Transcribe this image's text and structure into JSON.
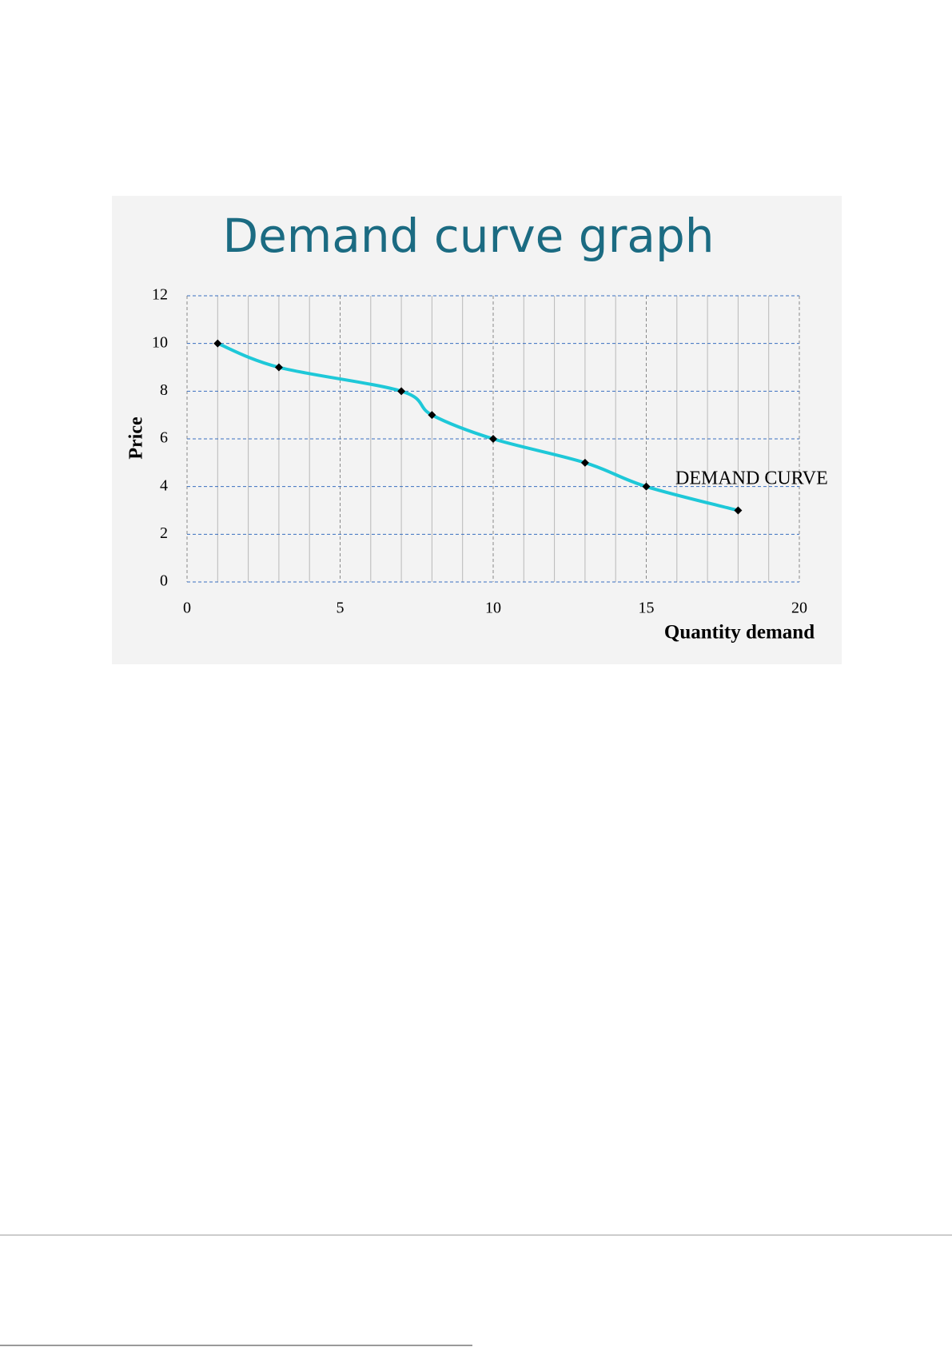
{
  "chart_data": {
    "type": "line",
    "title": "Demand curve graph",
    "x_label": "Quantity demand",
    "y_label": "Price",
    "x": [
      1,
      3,
      7,
      8,
      10,
      13,
      15,
      18
    ],
    "series": [
      {
        "name": "DEMAND CURVE",
        "color": "#1ec8d8",
        "values": [
          10,
          9,
          8,
          7,
          6,
          5,
          4,
          3
        ]
      }
    ],
    "xlim": [
      0,
      20
    ],
    "xticks": [
      0,
      5,
      10,
      15,
      20
    ],
    "x_minor_grid": [
      1,
      2,
      3,
      4,
      6,
      7,
      8,
      9,
      11,
      12,
      13,
      14,
      16,
      17,
      18,
      19
    ],
    "ylim": [
      0,
      12
    ],
    "yticks": [
      0,
      2,
      4,
      6,
      8,
      10,
      12
    ],
    "grid": true
  }
}
